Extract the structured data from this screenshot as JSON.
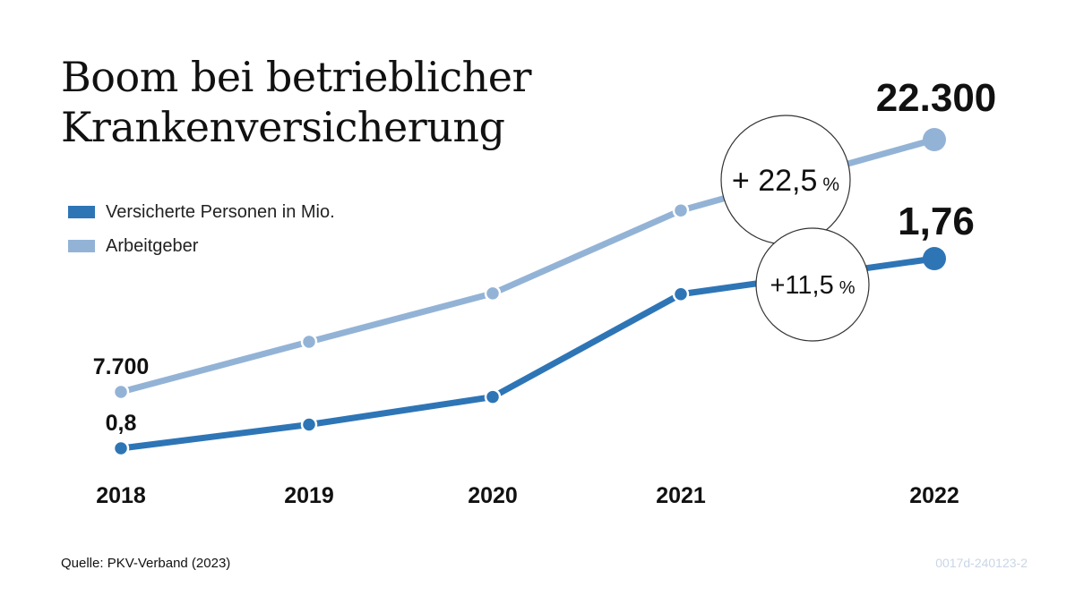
{
  "title_line1": "Boom bei betrieblicher",
  "title_line2": "Krankenversicherung",
  "legend": [
    {
      "label": "Versicherte Personen in Mio.",
      "color": "#2e75b6"
    },
    {
      "label": "Arbeitgeber",
      "color": "#93b3d6"
    }
  ],
  "source": "Quelle: PKV-Verband (2023)",
  "code": "0017d-240123-2",
  "chart_data": {
    "type": "line",
    "x": [
      "2018",
      "2019",
      "2020",
      "2021",
      "2022"
    ],
    "series": [
      {
        "name": "Versicherte Personen in Mio.",
        "color": "#2e75b6",
        "values": [
          0.8,
          0.92,
          1.06,
          1.58,
          1.76
        ],
        "labels": {
          "start": "0,8",
          "end": "1,76"
        }
      },
      {
        "name": "Arbeitgeber",
        "color": "#93b3d6",
        "values": [
          7700,
          10600,
          13400,
          18200,
          22300
        ],
        "labels": {
          "start": "7.700",
          "end": "22.300"
        }
      }
    ],
    "annotations": [
      {
        "series": "Arbeitgeber",
        "value": "+ 22,5",
        "unit": "%"
      },
      {
        "series": "Versicherte Personen in Mio.",
        "value": "+11,5",
        "unit": "%"
      }
    ],
    "grid": false,
    "legend_position": "top-left"
  }
}
